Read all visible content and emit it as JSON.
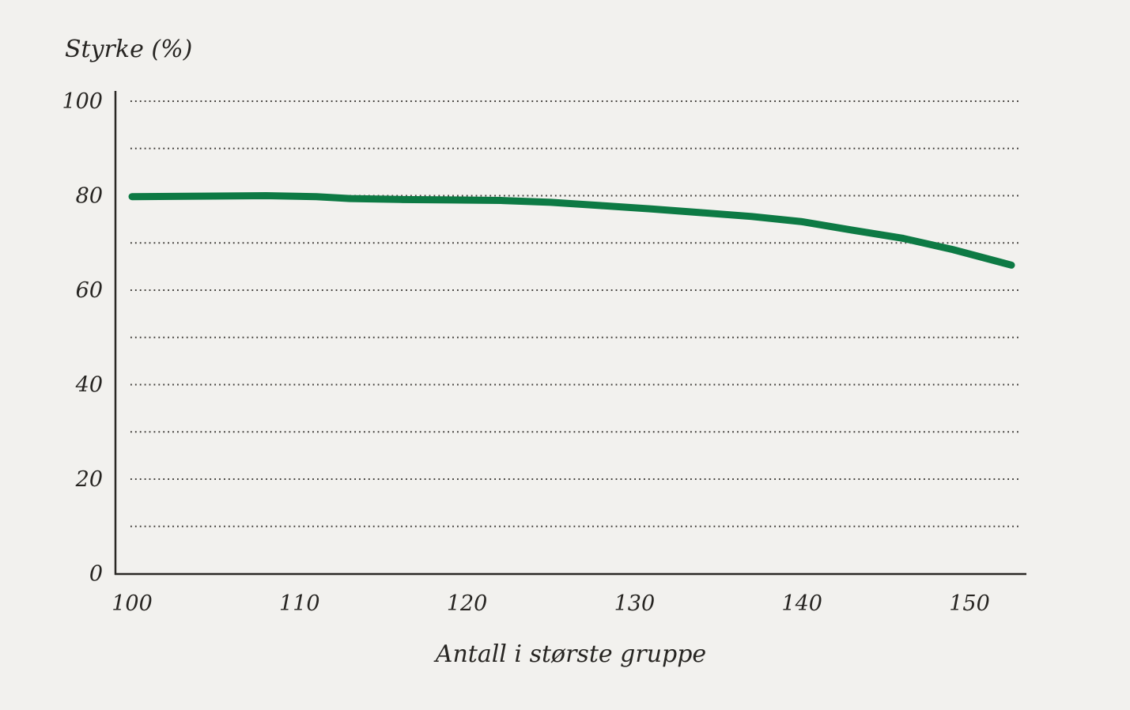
{
  "chart_data": {
    "type": "line",
    "title": "Styrke (%)",
    "xlabel": "Antall i største gruppe",
    "ylabel": "Styrke (%)",
    "x_ticks": [
      100,
      110,
      120,
      130,
      140,
      150
    ],
    "y_ticks": [
      0,
      20,
      40,
      60,
      80,
      100
    ],
    "grid_values": [
      10,
      20,
      30,
      40,
      50,
      60,
      70,
      80,
      90,
      100
    ],
    "xlim": [
      100,
      153.3
    ],
    "ylim": [
      0,
      100
    ],
    "grid": "dotted-horizontal",
    "legend": "none",
    "colors": {
      "line": "#0d7a44",
      "axis": "#2a2824",
      "grid_dot": "#3f3c38",
      "text": "#272522",
      "background": "#f2f1ee"
    },
    "series": [
      {
        "name": "Styrke",
        "x": [
          100,
          104,
          108,
          111,
          113,
          116,
          119,
          122,
          125,
          128,
          131,
          134,
          137,
          140,
          143,
          146,
          149,
          152.5
        ],
        "y": [
          79.8,
          79.9,
          80.0,
          79.8,
          79.4,
          79.2,
          79.1,
          79.0,
          78.6,
          77.9,
          77.2,
          76.4,
          75.6,
          74.5,
          72.7,
          71.0,
          68.6,
          65.3
        ]
      }
    ]
  }
}
